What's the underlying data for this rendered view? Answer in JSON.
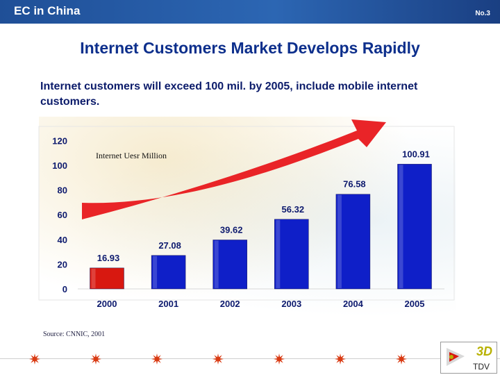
{
  "header": {
    "section_title": "EC in China",
    "slide_number": "No.3"
  },
  "headline": "Internet Customers Market Develops Rapidly",
  "subtitle": "Internet customers will exceed 100 mil. by 2005, include mobile internet customers.",
  "source": "Source: CNNIC, 2001",
  "logo": {
    "mark": "3D",
    "name": "TDV"
  },
  "colors": {
    "bar": "#0f1fc8",
    "first_bar": "#d81810",
    "arrow": "#e8181c",
    "text": "#0d1a6e",
    "header": "#2c66b3"
  },
  "icons": [
    "red-arrow-icon",
    "sparkle-icon",
    "logo-icon"
  ],
  "chart_data": {
    "type": "bar",
    "categories": [
      "2000",
      "2001",
      "2002",
      "2003",
      "2004",
      "2005"
    ],
    "values": [
      16.93,
      27.08,
      39.62,
      56.32,
      76.58,
      100.91
    ],
    "value_labels": [
      "16.93",
      "27.08",
      "39.62",
      "56.32",
      "76.58",
      "100.91"
    ],
    "ylabel": "Internet Uesr Million",
    "yticks": [
      "0",
      "20",
      "40",
      "60",
      "80",
      "100",
      "120"
    ],
    "ylim": [
      0,
      120
    ],
    "grid": false,
    "legend": "none"
  }
}
